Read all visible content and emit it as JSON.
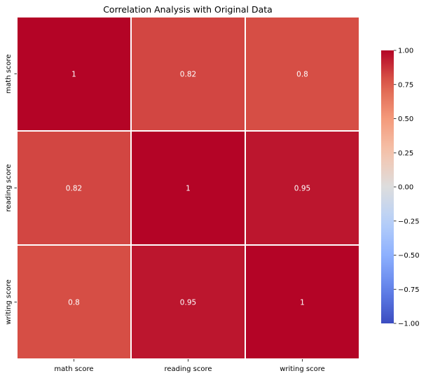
{
  "chart_data": {
    "type": "heatmap",
    "title": "Correlation Analysis with Original Data",
    "xlabel": "",
    "ylabel": "",
    "x_categories": [
      "math score",
      "reading score",
      "writing score"
    ],
    "y_categories": [
      "math score",
      "reading score",
      "writing score"
    ],
    "values": [
      [
        1,
        0.82,
        0.8
      ],
      [
        0.82,
        1,
        0.95
      ],
      [
        0.8,
        0.95,
        1
      ]
    ],
    "annotations": [
      [
        "1",
        "0.82",
        "0.8"
      ],
      [
        "0.82",
        "1",
        "0.95"
      ],
      [
        "0.8",
        "0.95",
        "1"
      ]
    ],
    "colormap": "coolwarm",
    "vmin": -1.0,
    "vmax": 1.0,
    "colorbar": {
      "ticks": [
        1.0,
        0.75,
        0.5,
        0.25,
        0.0,
        -0.25,
        -0.5,
        -0.75,
        -1.0
      ],
      "tick_labels": [
        "1.00",
        "0.75",
        "0.50",
        "0.25",
        "0.00",
        "−0.25",
        "−0.50",
        "−0.75",
        "−1.00"
      ]
    },
    "grid": true,
    "legend": "right"
  }
}
